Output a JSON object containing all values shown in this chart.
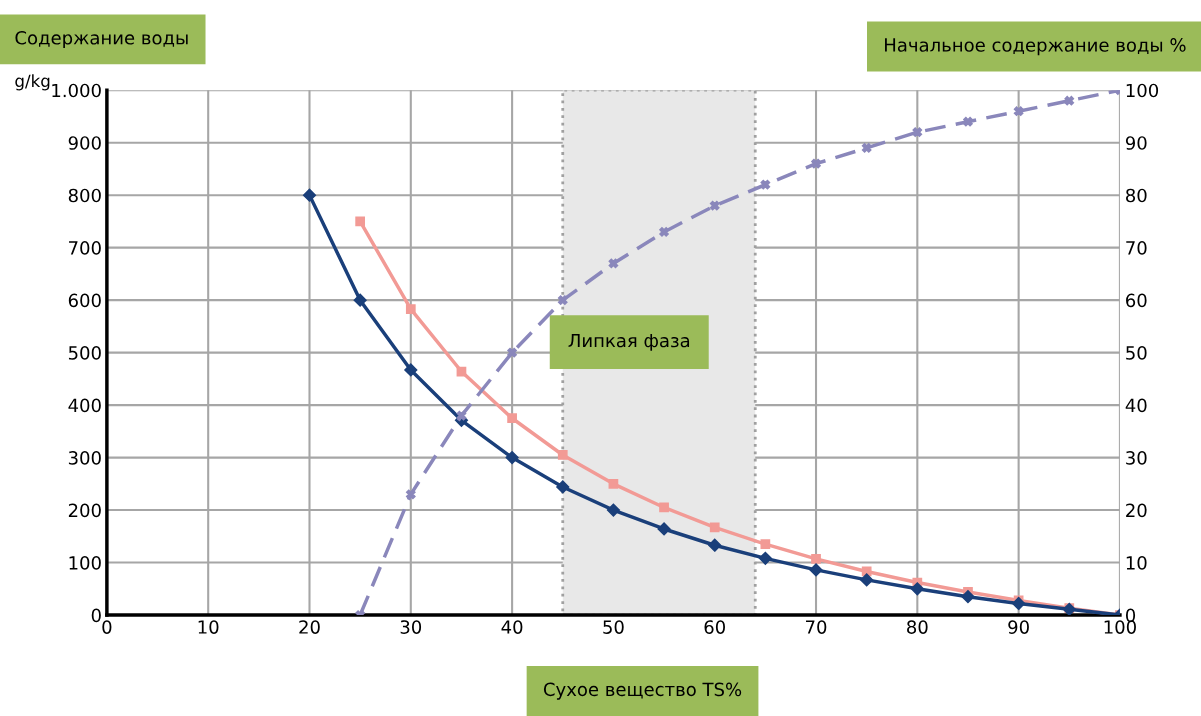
{
  "chart_data": {
    "type": "line",
    "xlabel": "Сухое вещество TS%",
    "ylabel": "Содержание воды",
    "y2label": "Начальное содержание воды %",
    "annotations": [
      "g/kg"
    ],
    "xlim": [
      0,
      100
    ],
    "xticks": [
      0,
      10,
      20,
      30,
      40,
      50,
      60,
      70,
      80,
      90,
      100
    ],
    "ylim": [
      0,
      1000
    ],
    "yticks": [
      0,
      100,
      200,
      300,
      400,
      500,
      600,
      700,
      800,
      900,
      {
        "value": 1000,
        "label": "1.000"
      }
    ],
    "y2lim": [
      0,
      100
    ],
    "y2ticks": [
      0,
      10,
      20,
      30,
      40,
      50,
      60,
      70,
      80,
      90,
      100
    ],
    "grid": true,
    "bands": [
      {
        "axis": "x",
        "from": 45,
        "to": 64,
        "label": "Липкая фаза",
        "color": "#e8e8e8"
      }
    ],
    "series": [
      {
        "color": "#1a3f7a",
        "marker": "diamond",
        "line_style": "solid",
        "x": [
          20,
          25,
          30,
          35,
          40,
          45,
          50,
          55,
          60,
          65,
          70,
          75,
          80,
          85,
          90,
          95,
          100
        ],
        "values": [
          800,
          600,
          467,
          371,
          300,
          244,
          200,
          164,
          133,
          108,
          86,
          67,
          50,
          35,
          22,
          11,
          0
        ]
      },
      {
        "color": "#f29a95",
        "marker": "square",
        "line_style": "solid",
        "x": [
          25,
          30,
          35,
          40,
          45,
          50,
          55,
          60,
          65,
          70,
          75,
          80,
          85,
          90,
          95,
          100
        ],
        "values": [
          750,
          583,
          464,
          375,
          305,
          250,
          205,
          167,
          135,
          107,
          83,
          62,
          44,
          28,
          13,
          0
        ]
      },
      {
        "color": "#8a87bb",
        "marker": "cross",
        "line_style": "dashed",
        "axis": "y2",
        "x": [
          25,
          30,
          35,
          40,
          45,
          50,
          55,
          60,
          65,
          70,
          75,
          80,
          85,
          90,
          95,
          100
        ],
        "values": [
          0,
          23,
          38,
          50,
          60,
          67,
          73,
          78,
          82,
          86,
          89,
          92,
          94,
          96,
          98,
          100
        ]
      }
    ]
  }
}
